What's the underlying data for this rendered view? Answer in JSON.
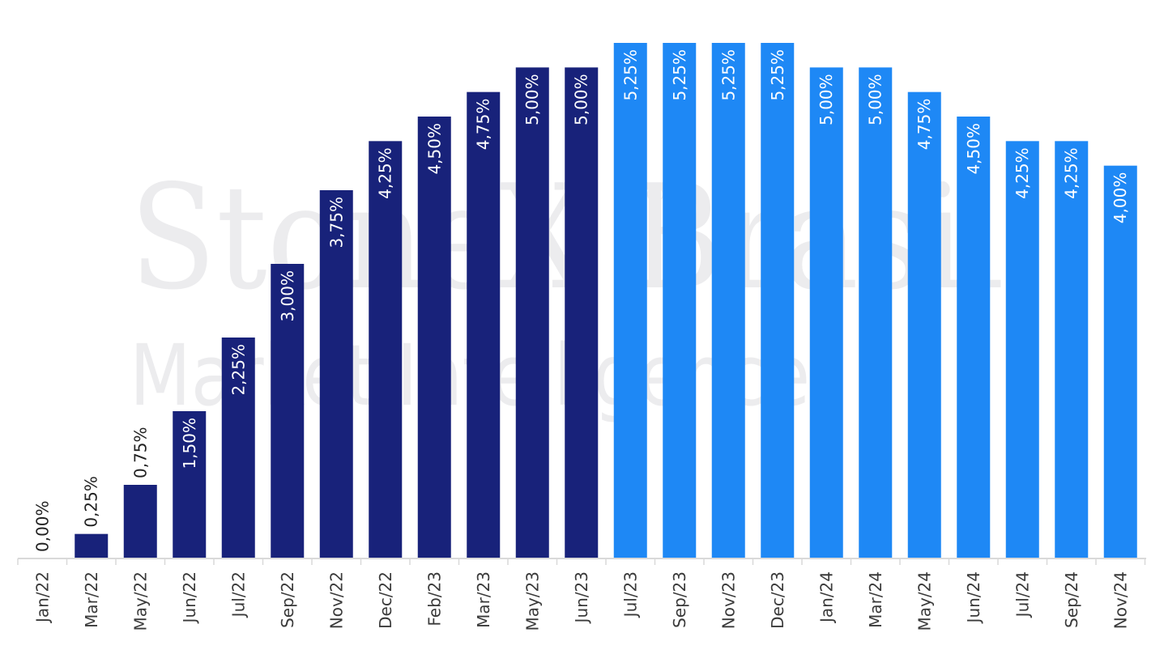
{
  "watermark": {
    "line1": "StoneX Brasil",
    "registered": "®",
    "line2": "Market Intelligence"
  },
  "colors": {
    "actual": "#18227a",
    "projected": "#1e88f5",
    "axis": "#d9d9d9",
    "label_inside": "#ffffff",
    "label_outside": "#222222"
  },
  "chart_data": {
    "type": "bar",
    "title": "",
    "xlabel": "",
    "ylabel": "",
    "ylim": [
      0,
      5.5
    ],
    "grid": false,
    "legend": "none",
    "categories": [
      "Jan/22",
      "Mar/22",
      "May/22",
      "Jun/22",
      "Jul/22",
      "Sep/22",
      "Nov/22",
      "Dec/22",
      "Feb/23",
      "Mar/23",
      "May/23",
      "Jun/23",
      "Jul/23",
      "Sep/23",
      "Nov/23",
      "Dec/23",
      "Jan/24",
      "Mar/24",
      "May/24",
      "Jun/24",
      "Jul/24",
      "Sep/24",
      "Nov/24"
    ],
    "values": [
      0.0,
      0.25,
      0.75,
      1.5,
      2.25,
      3.0,
      3.75,
      4.25,
      4.5,
      4.75,
      5.0,
      5.0,
      5.25,
      5.25,
      5.25,
      5.25,
      5.0,
      5.0,
      4.75,
      4.5,
      4.25,
      4.25,
      4.0
    ],
    "labels": [
      "0,00%",
      "0,25%",
      "0,75%",
      "1,50%",
      "2,25%",
      "3,00%",
      "3,75%",
      "4,25%",
      "4,50%",
      "4,75%",
      "5,00%",
      "5,00%",
      "5,25%",
      "5,25%",
      "5,25%",
      "5,25%",
      "5,00%",
      "5,00%",
      "4,75%",
      "4,50%",
      "4,25%",
      "4,25%",
      "4,00%"
    ],
    "segments": [
      "actual",
      "actual",
      "actual",
      "actual",
      "actual",
      "actual",
      "actual",
      "actual",
      "actual",
      "actual",
      "actual",
      "actual",
      "projected",
      "projected",
      "projected",
      "projected",
      "projected",
      "projected",
      "projected",
      "projected",
      "projected",
      "projected",
      "projected"
    ]
  }
}
